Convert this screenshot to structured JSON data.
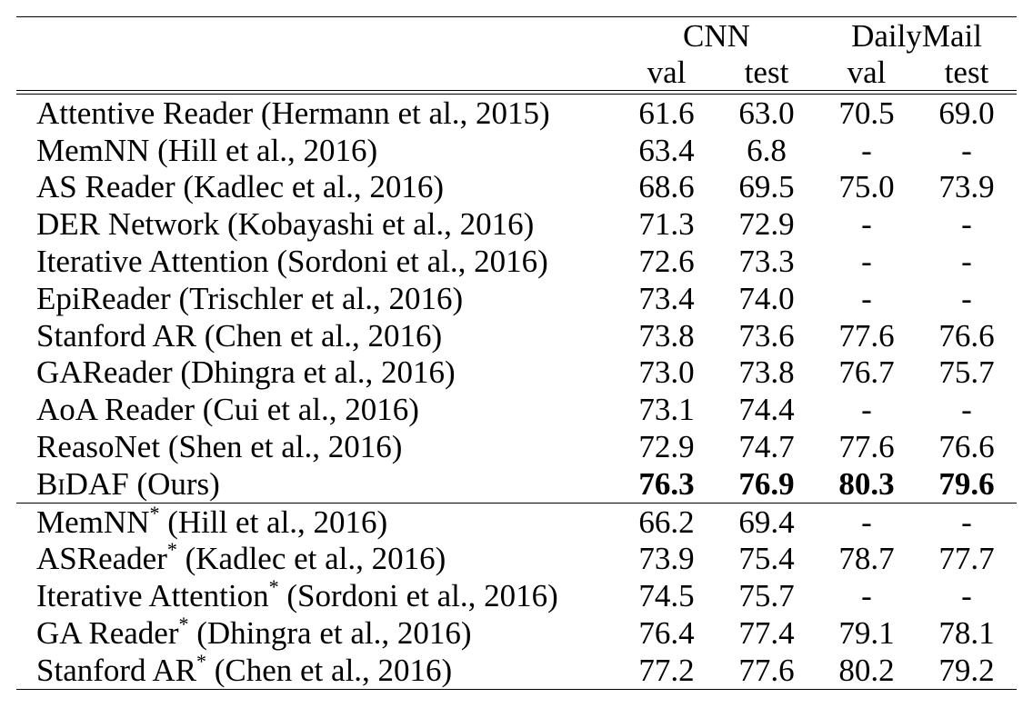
{
  "table": {
    "header": {
      "groups": [
        "CNN",
        "DailyMail"
      ],
      "subcols": [
        "val",
        "test",
        "val",
        "test"
      ]
    },
    "section1": [
      {
        "model": "Attentive Reader (Hermann et al., 2015)",
        "cnn_val": "61.6",
        "cnn_test": "63.0",
        "dm_val": "70.5",
        "dm_test": "69.0"
      },
      {
        "model": "MemNN (Hill et al., 2016)",
        "cnn_val": "63.4",
        "cnn_test": "6.8",
        "dm_val": "-",
        "dm_test": "-"
      },
      {
        "model": "AS Reader (Kadlec et al., 2016)",
        "cnn_val": "68.6",
        "cnn_test": "69.5",
        "dm_val": "75.0",
        "dm_test": "73.9"
      },
      {
        "model": "DER Network (Kobayashi et al., 2016)",
        "cnn_val": "71.3",
        "cnn_test": "72.9",
        "dm_val": "-",
        "dm_test": "-"
      },
      {
        "model": "Iterative Attention (Sordoni et al., 2016)",
        "cnn_val": "72.6",
        "cnn_test": "73.3",
        "dm_val": "-",
        "dm_test": "-"
      },
      {
        "model": "EpiReader (Trischler et al., 2016)",
        "cnn_val": "73.4",
        "cnn_test": "74.0",
        "dm_val": "-",
        "dm_test": "-"
      },
      {
        "model": "Stanford AR (Chen et al., 2016)",
        "cnn_val": "73.8",
        "cnn_test": "73.6",
        "dm_val": "77.6",
        "dm_test": "76.6"
      },
      {
        "model": "GAReader (Dhingra et al., 2016)",
        "cnn_val": "73.0",
        "cnn_test": "73.8",
        "dm_val": "76.7",
        "dm_test": "75.7"
      },
      {
        "model": "AoA Reader (Cui et al., 2016)",
        "cnn_val": "73.1",
        "cnn_test": "74.4",
        "dm_val": "-",
        "dm_test": "-"
      },
      {
        "model": "ReasoNet (Shen et al., 2016)",
        "cnn_val": "72.9",
        "cnn_test": "74.7",
        "dm_val": "77.6",
        "dm_test": "76.6"
      }
    ],
    "ours": {
      "model_name": "BiDAF",
      "model_suffix": " (Ours)",
      "cnn_val": "76.3",
      "cnn_test": "76.9",
      "dm_val": "80.3",
      "dm_test": "79.6"
    },
    "section2": [
      {
        "model_name": "MemNN",
        "model_cite": " (Hill et al., 2016)",
        "cnn_val": "66.2",
        "cnn_test": "69.4",
        "dm_val": "-",
        "dm_test": "-"
      },
      {
        "model_name": "ASReader",
        "model_cite": " (Kadlec et al., 2016)",
        "cnn_val": "73.9",
        "cnn_test": "75.4",
        "dm_val": "78.7",
        "dm_test": "77.7"
      },
      {
        "model_name": "Iterative Attention",
        "model_cite": " (Sordoni et al., 2016)",
        "cnn_val": "74.5",
        "cnn_test": "75.7",
        "dm_val": "-",
        "dm_test": "-"
      },
      {
        "model_name": "GA Reader",
        "model_cite": " (Dhingra et al., 2016)",
        "cnn_val": "76.4",
        "cnn_test": "77.4",
        "dm_val": "79.1",
        "dm_test": "78.1"
      },
      {
        "model_name": "Stanford AR",
        "model_cite": " (Chen et al., 2016)",
        "cnn_val": "77.2",
        "cnn_test": "77.6",
        "dm_val": "80.2",
        "dm_test": "79.2"
      }
    ],
    "ensemble_marker": "*"
  }
}
